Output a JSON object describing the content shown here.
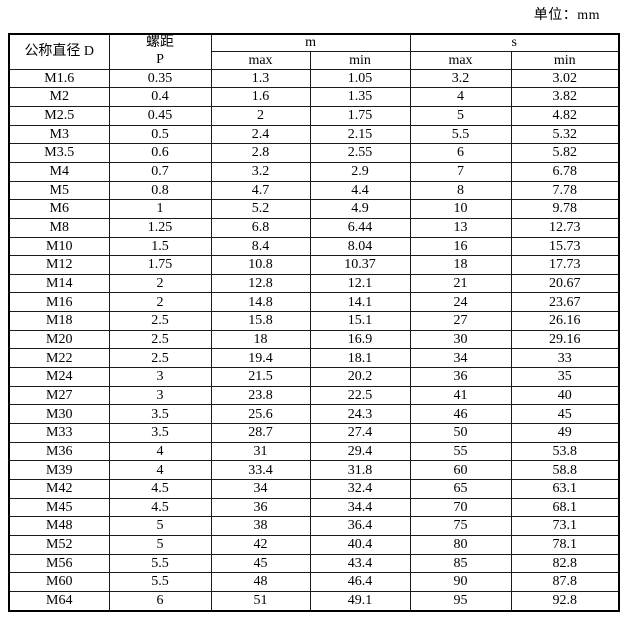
{
  "page": {
    "unit_label": "单位：mm"
  },
  "table": {
    "headers": {
      "col_diameter": "公称直径 D",
      "col_pitch_line1": "螺距",
      "col_pitch_line2": "P",
      "group_m": "m",
      "group_s": "s",
      "sub_max": "max",
      "sub_min": "min"
    },
    "columns": [
      "公称直径 D",
      "螺距 P",
      "m max",
      "m min",
      "s max",
      "s min"
    ],
    "rows": [
      [
        "M1.6",
        "0.35",
        "1.3",
        "1.05",
        "3.2",
        "3.02"
      ],
      [
        "M2",
        "0.4",
        "1.6",
        "1.35",
        "4",
        "3.82"
      ],
      [
        "M2.5",
        "0.45",
        "2",
        "1.75",
        "5",
        "4.82"
      ],
      [
        "M3",
        "0.5",
        "2.4",
        "2.15",
        "5.5",
        "5.32"
      ],
      [
        "M3.5",
        "0.6",
        "2.8",
        "2.55",
        "6",
        "5.82"
      ],
      [
        "M4",
        "0.7",
        "3.2",
        "2.9",
        "7",
        "6.78"
      ],
      [
        "M5",
        "0.8",
        "4.7",
        "4.4",
        "8",
        "7.78"
      ],
      [
        "M6",
        "1",
        "5.2",
        "4.9",
        "10",
        "9.78"
      ],
      [
        "M8",
        "1.25",
        "6.8",
        "6.44",
        "13",
        "12.73"
      ],
      [
        "M10",
        "1.5",
        "8.4",
        "8.04",
        "16",
        "15.73"
      ],
      [
        "M12",
        "1.75",
        "10.8",
        "10.37",
        "18",
        "17.73"
      ],
      [
        "M14",
        "2",
        "12.8",
        "12.1",
        "21",
        "20.67"
      ],
      [
        "M16",
        "2",
        "14.8",
        "14.1",
        "24",
        "23.67"
      ],
      [
        "M18",
        "2.5",
        "15.8",
        "15.1",
        "27",
        "26.16"
      ],
      [
        "M20",
        "2.5",
        "18",
        "16.9",
        "30",
        "29.16"
      ],
      [
        "M22",
        "2.5",
        "19.4",
        "18.1",
        "34",
        "33"
      ],
      [
        "M24",
        "3",
        "21.5",
        "20.2",
        "36",
        "35"
      ],
      [
        "M27",
        "3",
        "23.8",
        "22.5",
        "41",
        "40"
      ],
      [
        "M30",
        "3.5",
        "25.6",
        "24.3",
        "46",
        "45"
      ],
      [
        "M33",
        "3.5",
        "28.7",
        "27.4",
        "50",
        "49"
      ],
      [
        "M36",
        "4",
        "31",
        "29.4",
        "55",
        "53.8"
      ],
      [
        "M39",
        "4",
        "33.4",
        "31.8",
        "60",
        "58.8"
      ],
      [
        "M42",
        "4.5",
        "34",
        "32.4",
        "65",
        "63.1"
      ],
      [
        "M45",
        "4.5",
        "36",
        "34.4",
        "70",
        "68.1"
      ],
      [
        "M48",
        "5",
        "38",
        "36.4",
        "75",
        "73.1"
      ],
      [
        "M52",
        "5",
        "42",
        "40.4",
        "80",
        "78.1"
      ],
      [
        "M56",
        "5.5",
        "45",
        "43.4",
        "85",
        "82.8"
      ],
      [
        "M60",
        "5.5",
        "48",
        "46.4",
        "90",
        "87.8"
      ],
      [
        "M64",
        "6",
        "51",
        "49.1",
        "95",
        "92.8"
      ]
    ]
  },
  "colors": {
    "background": "#ffffff",
    "border": "#000000",
    "text": "#000000"
  }
}
